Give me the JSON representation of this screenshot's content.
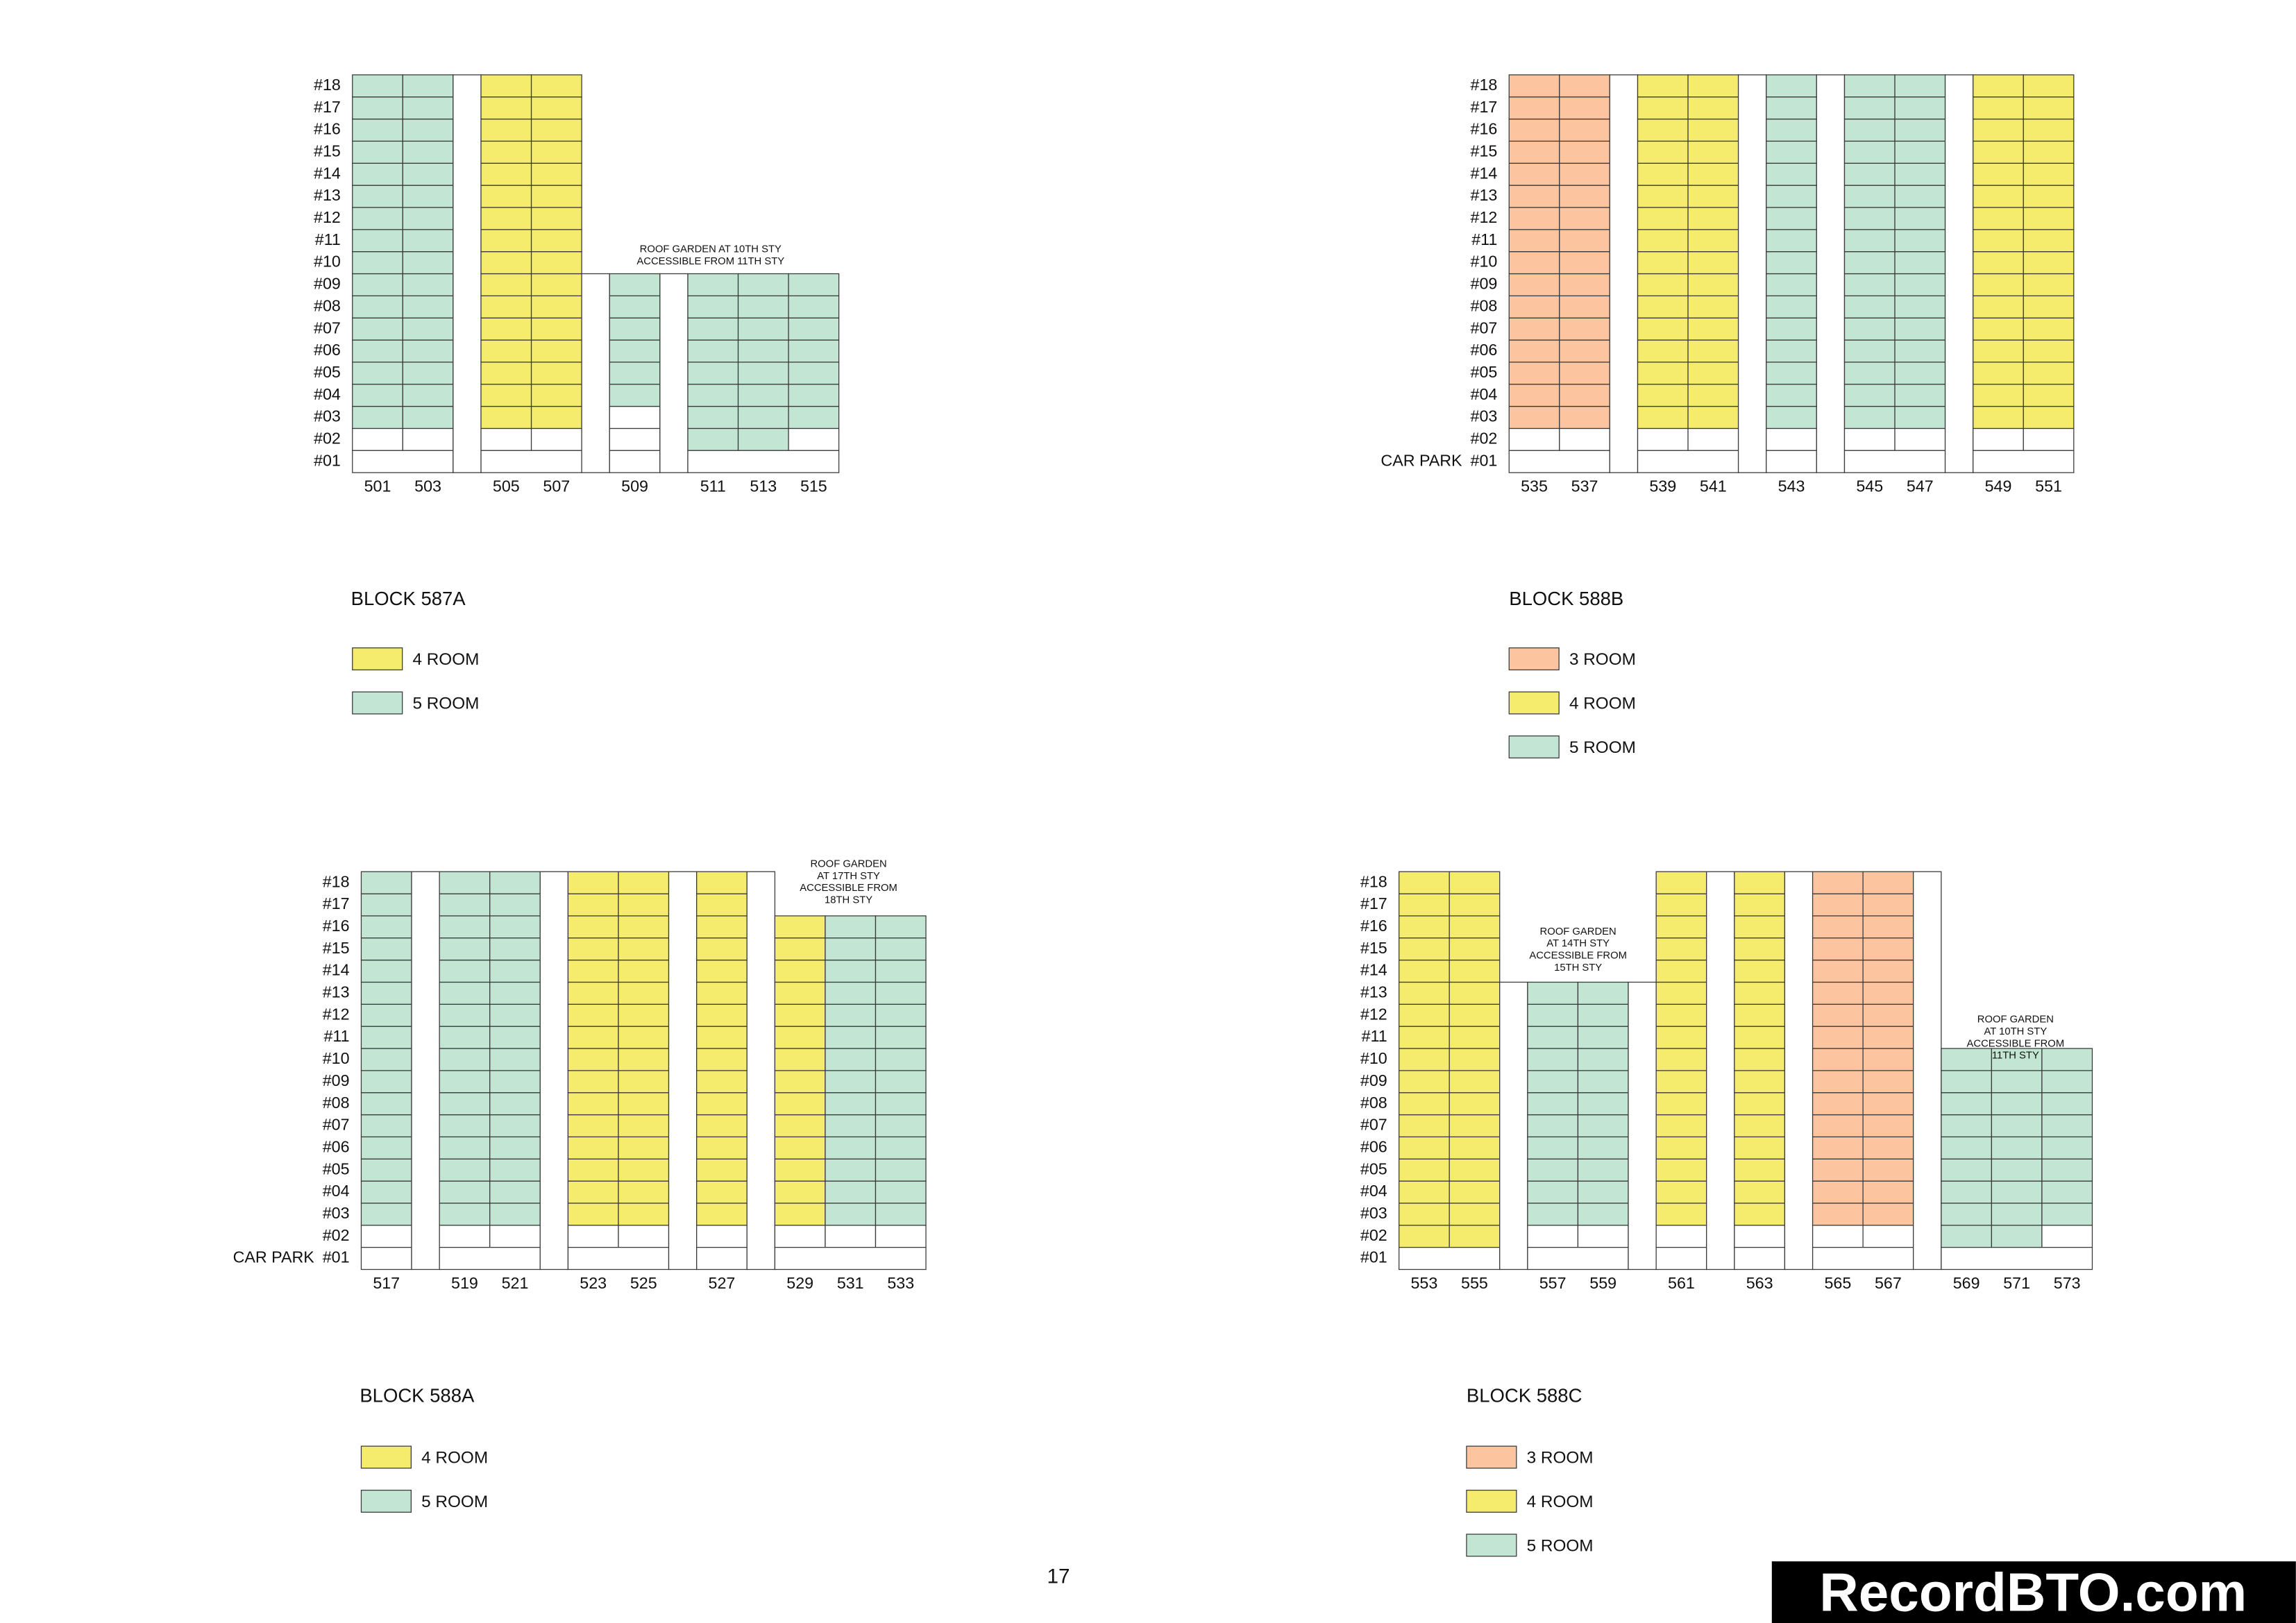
{
  "blocks": [
    {
      "title": "BLOCK 587A",
      "floors": [
        "#18",
        "#17",
        "#16",
        "#15",
        "#14",
        "#13",
        "#12",
        "#11",
        "#10",
        "#09",
        "#08",
        "#07",
        "#06",
        "#05",
        "#04",
        "#03",
        "#02",
        "#01"
      ],
      "units": [
        "501",
        "503",
        "505",
        "507",
        "509",
        "511",
        "513",
        "515"
      ],
      "legend": [
        {
          "label": "4 ROOM",
          "color": "#f5ec6e"
        },
        {
          "label": "5 ROOM",
          "color": "#c3e5d3"
        }
      ],
      "notes": [
        [
          "ROOF GARDEN AT 10TH STY",
          "ACCESSIBLE FROM 11TH STY"
        ]
      ]
    },
    {
      "title": "BLOCK 588B",
      "car_park": "CAR PARK",
      "floors": [
        "#18",
        "#17",
        "#16",
        "#15",
        "#14",
        "#13",
        "#12",
        "#11",
        "#10",
        "#09",
        "#08",
        "#07",
        "#06",
        "#05",
        "#04",
        "#03",
        "#02",
        "#01"
      ],
      "units": [
        "535",
        "537",
        "539",
        "541",
        "543",
        "545",
        "547",
        "549",
        "551"
      ],
      "legend": [
        {
          "label": "3 ROOM",
          "color": "#fcc49f"
        },
        {
          "label": "4 ROOM",
          "color": "#f5ec6e"
        },
        {
          "label": "5 ROOM",
          "color": "#c3e5d3"
        }
      ],
      "notes": []
    },
    {
      "title": "BLOCK 588A",
      "car_park": "CAR PARK",
      "floors": [
        "#18",
        "#17",
        "#16",
        "#15",
        "#14",
        "#13",
        "#12",
        "#11",
        "#10",
        "#09",
        "#08",
        "#07",
        "#06",
        "#05",
        "#04",
        "#03",
        "#02",
        "#01"
      ],
      "units": [
        "517",
        "519",
        "521",
        "523",
        "525",
        "527",
        "529",
        "531",
        "533"
      ],
      "legend": [
        {
          "label": "4 ROOM",
          "color": "#f5ec6e"
        },
        {
          "label": "5 ROOM",
          "color": "#c3e5d3"
        }
      ],
      "notes": [
        [
          "ROOF GARDEN",
          "AT 17TH STY",
          "ACCESSIBLE FROM",
          "18TH STY"
        ]
      ]
    },
    {
      "title": "BLOCK 588C",
      "floors": [
        "#18",
        "#17",
        "#16",
        "#15",
        "#14",
        "#13",
        "#12",
        "#11",
        "#10",
        "#09",
        "#08",
        "#07",
        "#06",
        "#05",
        "#04",
        "#03",
        "#02",
        "#01"
      ],
      "units": [
        "553",
        "555",
        "557",
        "559",
        "561",
        "563",
        "565",
        "567",
        "569",
        "571",
        "573"
      ],
      "legend": [
        {
          "label": "3 ROOM",
          "color": "#fcc49f"
        },
        {
          "label": "4 ROOM",
          "color": "#f5ec6e"
        },
        {
          "label": "5 ROOM",
          "color": "#c3e5d3"
        }
      ],
      "notes": [
        [
          "ROOF GARDEN",
          "AT 14TH STY",
          "ACCESSIBLE FROM",
          "15TH STY"
        ],
        [
          "ROOF GARDEN",
          "AT 10TH STY",
          "ACCESSIBLE FROM",
          "11TH STY"
        ]
      ]
    }
  ],
  "page_number": "17",
  "watermark": "RecordBTO.com"
}
